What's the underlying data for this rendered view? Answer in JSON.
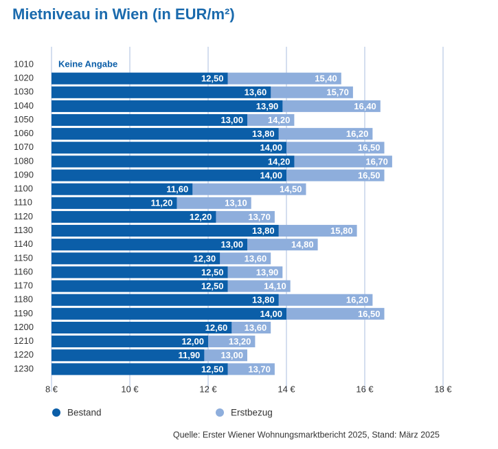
{
  "chart_data": {
    "type": "bar",
    "orientation": "horizontal",
    "overlap": true,
    "title": "Mietniveau in Wien (in EUR/m²)",
    "categories": [
      "1010",
      "1020",
      "1030",
      "1040",
      "1050",
      "1060",
      "1070",
      "1080",
      "1090",
      "1100",
      "1110",
      "1120",
      "1130",
      "1140",
      "1150",
      "1160",
      "1170",
      "1180",
      "1190",
      "1200",
      "1210",
      "1220",
      "1230"
    ],
    "series": [
      {
        "name": "Erstbezug",
        "color": "#8eaedc",
        "values": [
          null,
          15.4,
          15.7,
          16.4,
          14.2,
          16.2,
          16.5,
          16.7,
          16.5,
          14.5,
          13.1,
          13.7,
          15.8,
          14.8,
          13.6,
          13.9,
          14.1,
          16.2,
          16.5,
          13.6,
          13.2,
          13.0,
          13.7
        ],
        "value_labels": [
          null,
          "15,40",
          "15,70",
          "16,40",
          "14,20",
          "16,20",
          "16,50",
          "16,70",
          "16,50",
          "14,50",
          "13,10",
          "13,70",
          "15,80",
          "14,80",
          "13,60",
          "13,90",
          "14,10",
          "16,20",
          "16,50",
          "13,60",
          "13,20",
          "13,00",
          "13,70"
        ]
      },
      {
        "name": "Bestand",
        "color": "#0b5ea8",
        "values": [
          null,
          12.5,
          13.6,
          13.9,
          13.0,
          13.8,
          14.0,
          14.2,
          14.0,
          11.6,
          11.2,
          12.2,
          13.8,
          13.0,
          12.3,
          12.5,
          12.5,
          13.8,
          14.0,
          12.6,
          12.0,
          11.9,
          12.5
        ],
        "value_labels": [
          null,
          "12,50",
          "13,60",
          "13,90",
          "13,00",
          "13,80",
          "14,00",
          "14,20",
          "14,00",
          "11,60",
          "11,20",
          "12,20",
          "13,80",
          "13,00",
          "12,30",
          "12,50",
          "12,50",
          "13,80",
          "14,00",
          "12,60",
          "12,00",
          "11,90",
          "12,50"
        ]
      }
    ],
    "annotation": "Keine Angabe",
    "xlim": [
      8,
      18
    ],
    "xticks": [
      {
        "value": 8,
        "label": "8 €"
      },
      {
        "value": 10,
        "label": "10 €"
      },
      {
        "value": 12,
        "label": "12 €"
      },
      {
        "value": 14,
        "label": "14 €"
      },
      {
        "value": 16,
        "label": "16 €"
      },
      {
        "value": 18,
        "label": "18 €"
      }
    ],
    "grid": true,
    "legend": "bottom",
    "source": "Quelle: Erster Wiener Wohnungsmarktbericht 2025, Stand: März 2025"
  }
}
